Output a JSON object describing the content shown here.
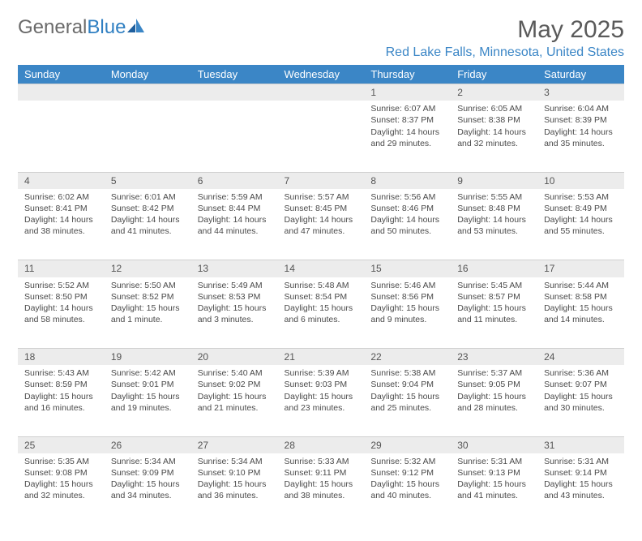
{
  "brand": {
    "part1": "General",
    "part2": "Blue"
  },
  "title": "May 2025",
  "location": "Red Lake Falls, Minnesota, United States",
  "colors": {
    "header_bg": "#3b86c6",
    "header_text": "#ffffff",
    "daynum_bg": "#ececec",
    "body_text": "#4a4a4a",
    "title_text": "#5a5a5a",
    "location_text": "#3b86c6",
    "logo_gray": "#6a6a6a",
    "logo_blue": "#2f7fc2"
  },
  "daysOfWeek": [
    "Sunday",
    "Monday",
    "Tuesday",
    "Wednesday",
    "Thursday",
    "Friday",
    "Saturday"
  ],
  "weeks": [
    {
      "nums": [
        "",
        "",
        "",
        "",
        "1",
        "2",
        "3"
      ],
      "cells": [
        null,
        null,
        null,
        null,
        {
          "sunrise": "Sunrise: 6:07 AM",
          "sunset": "Sunset: 8:37 PM",
          "day1": "Daylight: 14 hours",
          "day2": "and 29 minutes."
        },
        {
          "sunrise": "Sunrise: 6:05 AM",
          "sunset": "Sunset: 8:38 PM",
          "day1": "Daylight: 14 hours",
          "day2": "and 32 minutes."
        },
        {
          "sunrise": "Sunrise: 6:04 AM",
          "sunset": "Sunset: 8:39 PM",
          "day1": "Daylight: 14 hours",
          "day2": "and 35 minutes."
        }
      ]
    },
    {
      "nums": [
        "4",
        "5",
        "6",
        "7",
        "8",
        "9",
        "10"
      ],
      "cells": [
        {
          "sunrise": "Sunrise: 6:02 AM",
          "sunset": "Sunset: 8:41 PM",
          "day1": "Daylight: 14 hours",
          "day2": "and 38 minutes."
        },
        {
          "sunrise": "Sunrise: 6:01 AM",
          "sunset": "Sunset: 8:42 PM",
          "day1": "Daylight: 14 hours",
          "day2": "and 41 minutes."
        },
        {
          "sunrise": "Sunrise: 5:59 AM",
          "sunset": "Sunset: 8:44 PM",
          "day1": "Daylight: 14 hours",
          "day2": "and 44 minutes."
        },
        {
          "sunrise": "Sunrise: 5:57 AM",
          "sunset": "Sunset: 8:45 PM",
          "day1": "Daylight: 14 hours",
          "day2": "and 47 minutes."
        },
        {
          "sunrise": "Sunrise: 5:56 AM",
          "sunset": "Sunset: 8:46 PM",
          "day1": "Daylight: 14 hours",
          "day2": "and 50 minutes."
        },
        {
          "sunrise": "Sunrise: 5:55 AM",
          "sunset": "Sunset: 8:48 PM",
          "day1": "Daylight: 14 hours",
          "day2": "and 53 minutes."
        },
        {
          "sunrise": "Sunrise: 5:53 AM",
          "sunset": "Sunset: 8:49 PM",
          "day1": "Daylight: 14 hours",
          "day2": "and 55 minutes."
        }
      ]
    },
    {
      "nums": [
        "11",
        "12",
        "13",
        "14",
        "15",
        "16",
        "17"
      ],
      "cells": [
        {
          "sunrise": "Sunrise: 5:52 AM",
          "sunset": "Sunset: 8:50 PM",
          "day1": "Daylight: 14 hours",
          "day2": "and 58 minutes."
        },
        {
          "sunrise": "Sunrise: 5:50 AM",
          "sunset": "Sunset: 8:52 PM",
          "day1": "Daylight: 15 hours",
          "day2": "and 1 minute."
        },
        {
          "sunrise": "Sunrise: 5:49 AM",
          "sunset": "Sunset: 8:53 PM",
          "day1": "Daylight: 15 hours",
          "day2": "and 3 minutes."
        },
        {
          "sunrise": "Sunrise: 5:48 AM",
          "sunset": "Sunset: 8:54 PM",
          "day1": "Daylight: 15 hours",
          "day2": "and 6 minutes."
        },
        {
          "sunrise": "Sunrise: 5:46 AM",
          "sunset": "Sunset: 8:56 PM",
          "day1": "Daylight: 15 hours",
          "day2": "and 9 minutes."
        },
        {
          "sunrise": "Sunrise: 5:45 AM",
          "sunset": "Sunset: 8:57 PM",
          "day1": "Daylight: 15 hours",
          "day2": "and 11 minutes."
        },
        {
          "sunrise": "Sunrise: 5:44 AM",
          "sunset": "Sunset: 8:58 PM",
          "day1": "Daylight: 15 hours",
          "day2": "and 14 minutes."
        }
      ]
    },
    {
      "nums": [
        "18",
        "19",
        "20",
        "21",
        "22",
        "23",
        "24"
      ],
      "cells": [
        {
          "sunrise": "Sunrise: 5:43 AM",
          "sunset": "Sunset: 8:59 PM",
          "day1": "Daylight: 15 hours",
          "day2": "and 16 minutes."
        },
        {
          "sunrise": "Sunrise: 5:42 AM",
          "sunset": "Sunset: 9:01 PM",
          "day1": "Daylight: 15 hours",
          "day2": "and 19 minutes."
        },
        {
          "sunrise": "Sunrise: 5:40 AM",
          "sunset": "Sunset: 9:02 PM",
          "day1": "Daylight: 15 hours",
          "day2": "and 21 minutes."
        },
        {
          "sunrise": "Sunrise: 5:39 AM",
          "sunset": "Sunset: 9:03 PM",
          "day1": "Daylight: 15 hours",
          "day2": "and 23 minutes."
        },
        {
          "sunrise": "Sunrise: 5:38 AM",
          "sunset": "Sunset: 9:04 PM",
          "day1": "Daylight: 15 hours",
          "day2": "and 25 minutes."
        },
        {
          "sunrise": "Sunrise: 5:37 AM",
          "sunset": "Sunset: 9:05 PM",
          "day1": "Daylight: 15 hours",
          "day2": "and 28 minutes."
        },
        {
          "sunrise": "Sunrise: 5:36 AM",
          "sunset": "Sunset: 9:07 PM",
          "day1": "Daylight: 15 hours",
          "day2": "and 30 minutes."
        }
      ]
    },
    {
      "nums": [
        "25",
        "26",
        "27",
        "28",
        "29",
        "30",
        "31"
      ],
      "cells": [
        {
          "sunrise": "Sunrise: 5:35 AM",
          "sunset": "Sunset: 9:08 PM",
          "day1": "Daylight: 15 hours",
          "day2": "and 32 minutes."
        },
        {
          "sunrise": "Sunrise: 5:34 AM",
          "sunset": "Sunset: 9:09 PM",
          "day1": "Daylight: 15 hours",
          "day2": "and 34 minutes."
        },
        {
          "sunrise": "Sunrise: 5:34 AM",
          "sunset": "Sunset: 9:10 PM",
          "day1": "Daylight: 15 hours",
          "day2": "and 36 minutes."
        },
        {
          "sunrise": "Sunrise: 5:33 AM",
          "sunset": "Sunset: 9:11 PM",
          "day1": "Daylight: 15 hours",
          "day2": "and 38 minutes."
        },
        {
          "sunrise": "Sunrise: 5:32 AM",
          "sunset": "Sunset: 9:12 PM",
          "day1": "Daylight: 15 hours",
          "day2": "and 40 minutes."
        },
        {
          "sunrise": "Sunrise: 5:31 AM",
          "sunset": "Sunset: 9:13 PM",
          "day1": "Daylight: 15 hours",
          "day2": "and 41 minutes."
        },
        {
          "sunrise": "Sunrise: 5:31 AM",
          "sunset": "Sunset: 9:14 PM",
          "day1": "Daylight: 15 hours",
          "day2": "and 43 minutes."
        }
      ]
    }
  ]
}
